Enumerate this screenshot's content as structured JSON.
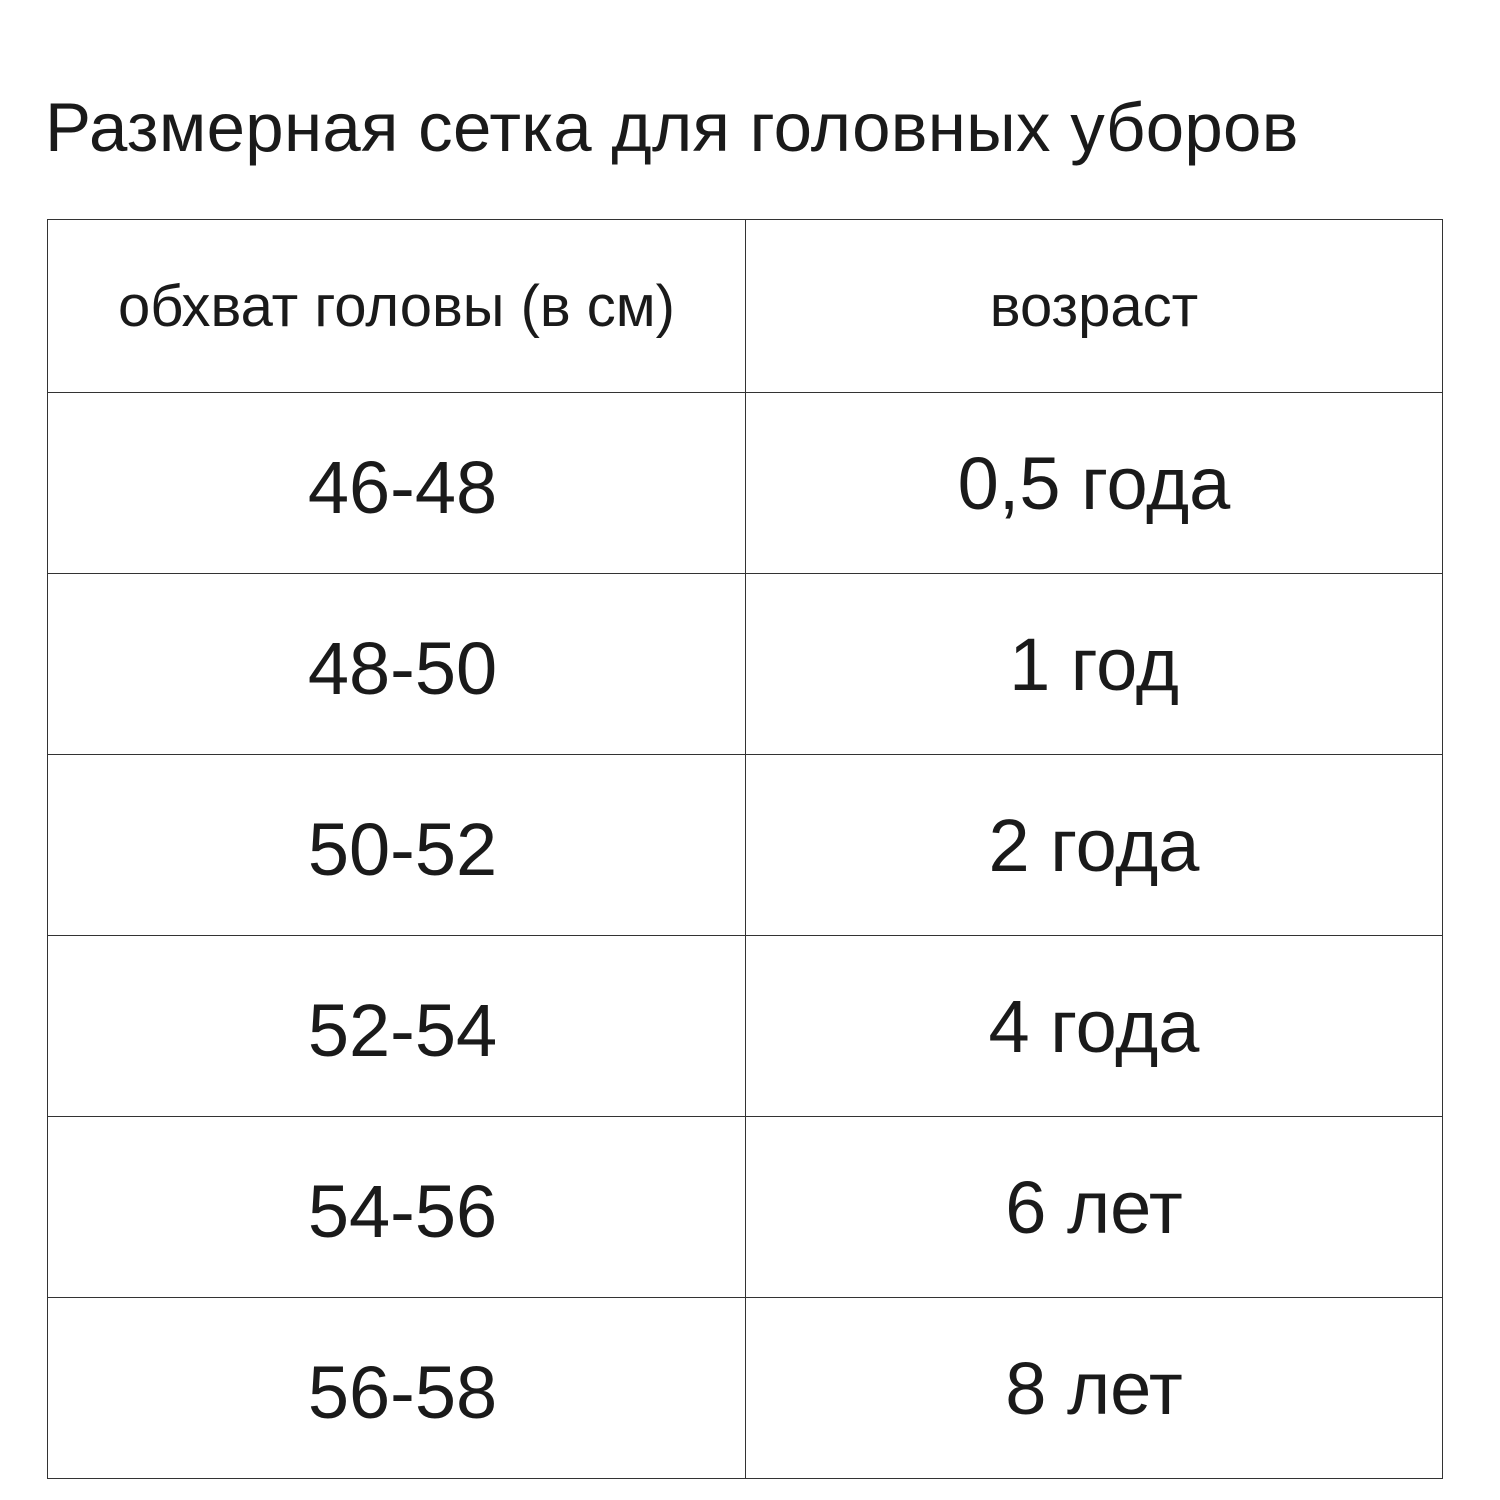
{
  "title": "Размерная сетка для головных уборов",
  "table": {
    "headers": [
      "обхват головы (в см)",
      "возраст"
    ],
    "rows": [
      [
        "46-48",
        "0,5 года"
      ],
      [
        "48-50",
        "1 год"
      ],
      [
        "50-52",
        "2 года"
      ],
      [
        "52-54",
        "4 года"
      ],
      [
        "54-56",
        "6 лет"
      ],
      [
        "56-58",
        "8 лет"
      ]
    ]
  }
}
